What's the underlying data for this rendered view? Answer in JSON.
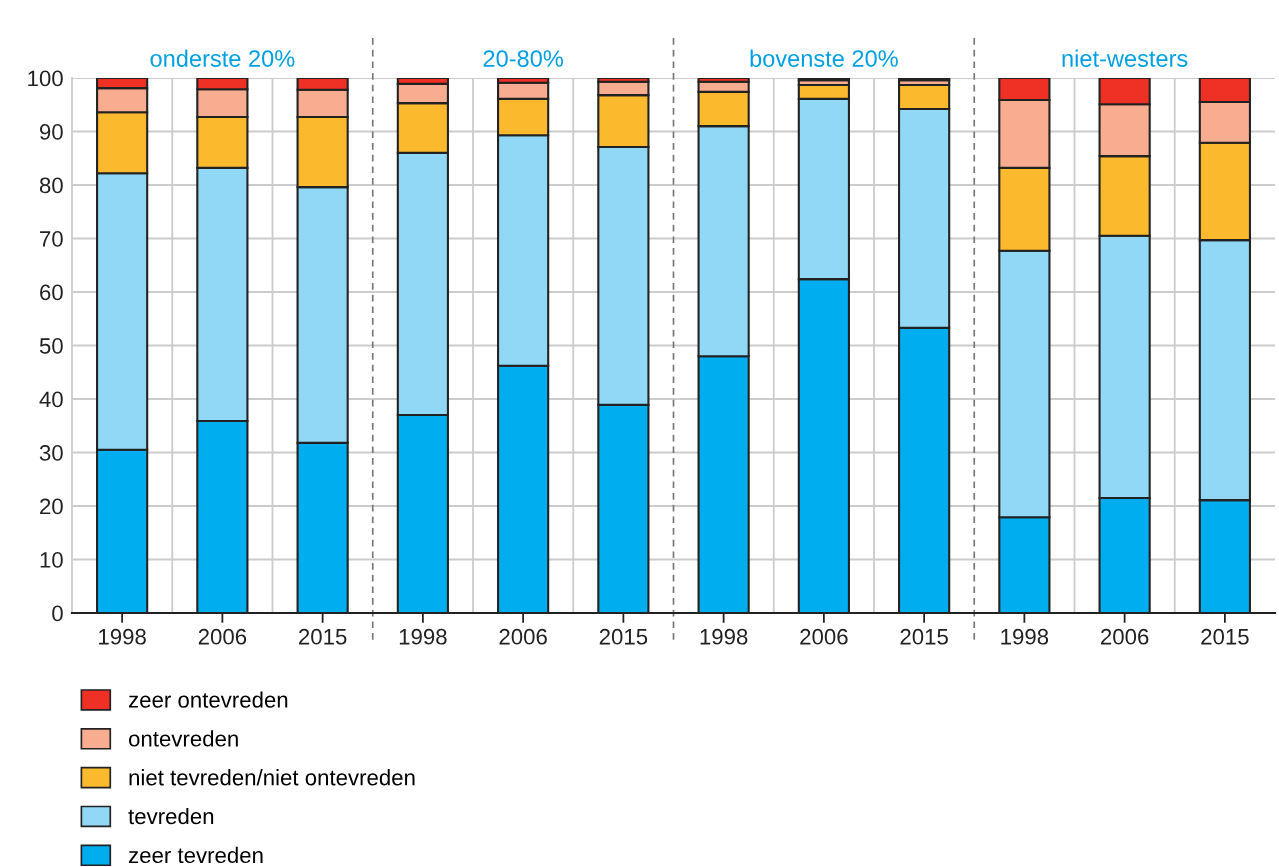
{
  "chart_data": {
    "type": "bar",
    "stacked": true,
    "categories": [
      "1998",
      "2006",
      "2015",
      "1998",
      "2006",
      "2015",
      "1998",
      "2006",
      "2015",
      "1998",
      "2006",
      "2015"
    ],
    "annotations": [
      "onderste 20%",
      "20-80%",
      "bovenste 20%",
      "niet-westers"
    ],
    "ylim": [
      0,
      100
    ],
    "yticks": [
      0,
      10,
      20,
      30,
      40,
      50,
      60,
      70,
      80,
      90,
      100
    ],
    "grid": true,
    "legend": "bottom",
    "series": [
      {
        "name": "zeer tevreden",
        "color": "#00aeef",
        "values": [
          30.5,
          35.9,
          31.8,
          37.0,
          46.2,
          38.9,
          48.0,
          62.4,
          53.3,
          17.9,
          21.5,
          21.1
        ]
      },
      {
        "name": "tevreden",
        "color": "#91d8f6",
        "values": [
          51.7,
          47.3,
          47.8,
          49.0,
          43.1,
          48.2,
          43.0,
          33.7,
          40.9,
          49.8,
          49.0,
          48.6
        ]
      },
      {
        "name": "niet tevreden/niet ontevreden",
        "color": "#fbb92d",
        "values": [
          11.4,
          9.5,
          13.1,
          9.3,
          6.8,
          9.7,
          6.4,
          2.6,
          4.5,
          15.5,
          14.9,
          18.2
        ]
      },
      {
        "name": "ontevreden",
        "color": "#f8ad91",
        "values": [
          4.5,
          5.2,
          5.1,
          3.6,
          3.0,
          2.5,
          1.9,
          0.9,
          0.9,
          12.7,
          9.7,
          7.6
        ]
      },
      {
        "name": "zeer ontevreden",
        "color": "#ee3124",
        "values": [
          1.9,
          2.1,
          2.2,
          1.1,
          0.9,
          0.7,
          0.7,
          0.4,
          0.4,
          4.1,
          4.9,
          4.5
        ]
      }
    ]
  }
}
